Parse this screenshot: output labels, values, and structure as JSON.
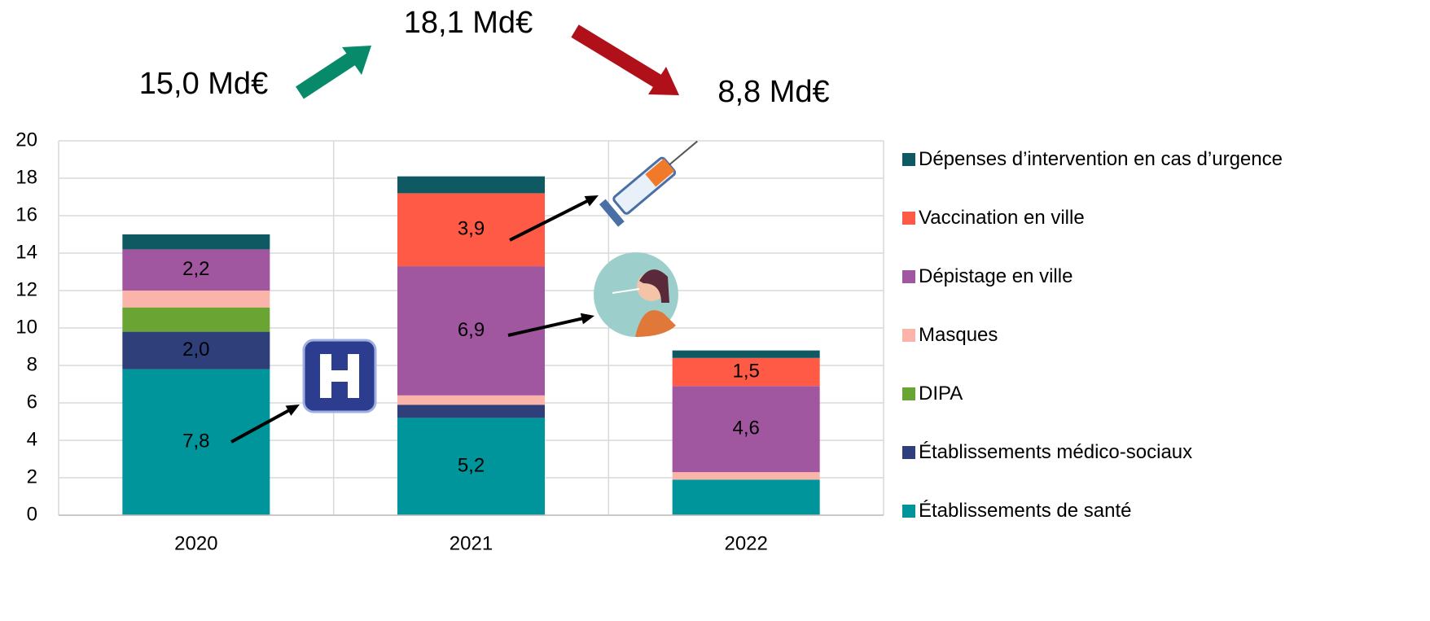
{
  "chart_data": {
    "type": "stacked-bar",
    "categories": [
      "2020",
      "2021",
      "2022"
    ],
    "ylim": [
      0,
      20
    ],
    "yticks": [
      0,
      2,
      4,
      6,
      8,
      10,
      12,
      14,
      16,
      18,
      20
    ],
    "grid": true,
    "annotations": [
      "15,0 Md€",
      "18,1 Md€",
      "8,8 Md€"
    ],
    "series": [
      {
        "name": "Établissements de santé",
        "color": "#00959a",
        "values": [
          7.8,
          5.2,
          1.9
        ],
        "value_labels": [
          "7,8",
          "5,2",
          null
        ]
      },
      {
        "name": "Établissements médico-sociaux",
        "color": "#2e3f7a",
        "values": [
          2.0,
          0.7,
          0
        ],
        "value_labels": [
          "2,0",
          null,
          null
        ]
      },
      {
        "name": "DIPA",
        "color": "#6aa534",
        "values": [
          1.3,
          0,
          0
        ],
        "value_labels": [
          null,
          null,
          null
        ]
      },
      {
        "name": "Masques",
        "color": "#fbb4aa",
        "values": [
          0.9,
          0.5,
          0.4
        ],
        "value_labels": [
          null,
          null,
          null
        ]
      },
      {
        "name": "Dépistage en ville",
        "color": "#a057a0",
        "values": [
          2.2,
          6.9,
          4.6
        ],
        "value_labels": [
          "2,2",
          "6,9",
          "4,6"
        ]
      },
      {
        "name": "Vaccination en ville",
        "color": "#ff5a45",
        "values": [
          0,
          3.9,
          1.5
        ],
        "value_labels": [
          null,
          "3,9",
          "1,5"
        ]
      },
      {
        "name": "Dépenses d’intervention en cas d’urgence",
        "color": "#0f5a62",
        "values": [
          0.8,
          0.9,
          0.4
        ],
        "value_labels": [
          null,
          null,
          null
        ]
      }
    ]
  }
}
